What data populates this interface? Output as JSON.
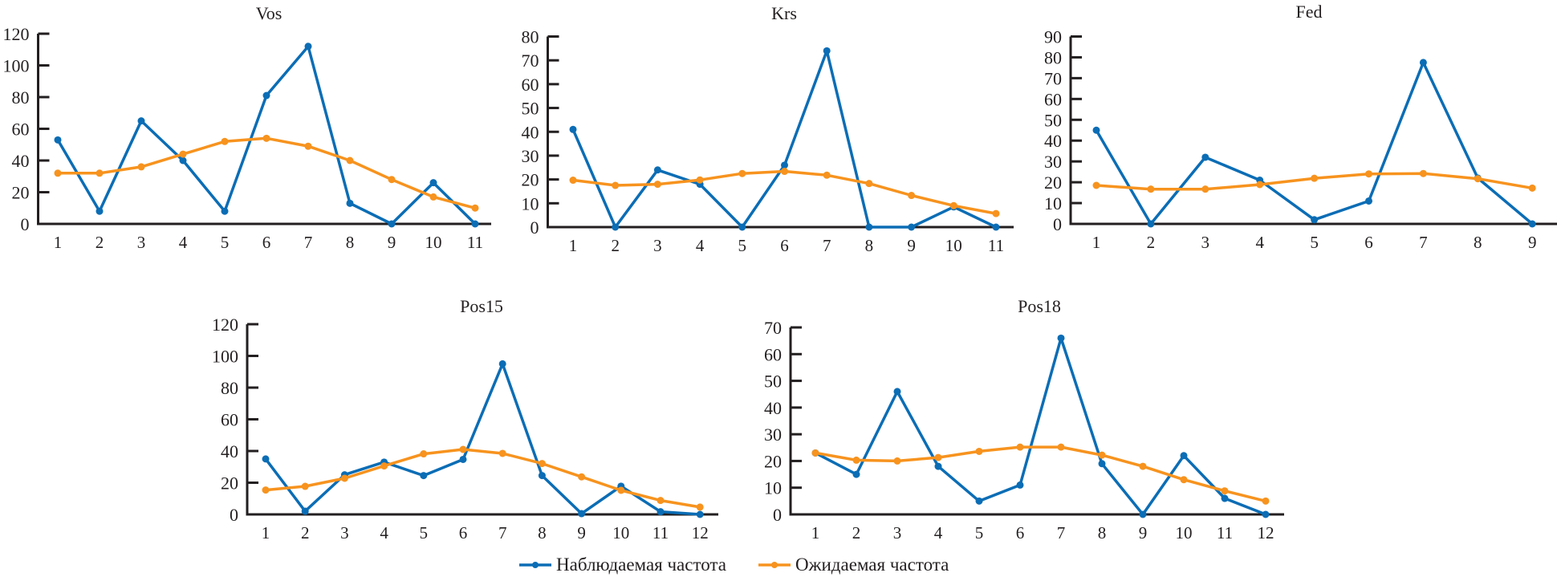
{
  "colors": {
    "observed": "#0b6db5",
    "expected": "#f7931e",
    "axis": "#231f20",
    "text": "#231f20"
  },
  "legend": {
    "position": "bottom-center",
    "items": [
      {
        "name": "Наблюдаемая частота",
        "series": "observed"
      },
      {
        "name": "Ожидаемая частота",
        "series": "expected"
      }
    ]
  },
  "chart_data": [
    {
      "type": "line",
      "title": "Vos",
      "xlabel": "",
      "ylabel": "",
      "x": [
        1,
        2,
        3,
        4,
        5,
        6,
        7,
        8,
        9,
        10,
        11
      ],
      "ylim": [
        0,
        120
      ],
      "yticks": [
        0,
        20,
        40,
        60,
        80,
        100,
        120
      ],
      "grid": false,
      "series": [
        {
          "name": "Наблюдаемая частота",
          "values": [
            53,
            8,
            65,
            40,
            8,
            81,
            112,
            13,
            0,
            26,
            0
          ]
        },
        {
          "name": "Ожидаемая частота",
          "values": [
            32,
            32,
            36,
            44,
            52,
            54,
            49,
            40,
            28,
            17,
            10
          ]
        }
      ]
    },
    {
      "type": "line",
      "title": "Krs",
      "xlabel": "",
      "ylabel": "",
      "x": [
        1,
        2,
        3,
        4,
        5,
        6,
        7,
        8,
        9,
        10,
        11
      ],
      "ylim": [
        0,
        80
      ],
      "yticks": [
        0,
        10,
        20,
        30,
        40,
        50,
        60,
        70,
        80
      ],
      "grid": false,
      "series": [
        {
          "name": "Наблюдаемая частота",
          "values": [
            41,
            0,
            24,
            18,
            0,
            26,
            74,
            0,
            0,
            8.5,
            0
          ]
        },
        {
          "name": "Ожидаемая частота",
          "values": [
            19.7,
            17.5,
            18,
            19.8,
            22.5,
            23.4,
            21.8,
            18.3,
            13.3,
            9,
            5.7
          ]
        }
      ]
    },
    {
      "type": "line",
      "title": "Fed",
      "xlabel": "",
      "ylabel": "",
      "x": [
        1,
        2,
        3,
        4,
        5,
        6,
        7,
        8,
        9
      ],
      "ylim": [
        0,
        90
      ],
      "yticks": [
        0,
        10,
        20,
        30,
        40,
        50,
        60,
        70,
        80,
        90
      ],
      "grid": false,
      "series": [
        {
          "name": "Наблюдаемая частота",
          "values": [
            45,
            0,
            32,
            21,
            2,
            11,
            77.5,
            22,
            0
          ]
        },
        {
          "name": "Ожидаемая частота",
          "values": [
            18.5,
            16.7,
            16.7,
            18.9,
            21.9,
            24,
            24.2,
            21.7,
            17.2
          ]
        }
      ]
    },
    {
      "type": "line",
      "title": "Pos15",
      "xlabel": "",
      "ylabel": "",
      "x": [
        1,
        2,
        3,
        4,
        5,
        6,
        7,
        8,
        9,
        10,
        11,
        12
      ],
      "ylim": [
        0,
        120
      ],
      "yticks": [
        0,
        20,
        40,
        60,
        80,
        100,
        120
      ],
      "grid": false,
      "series": [
        {
          "name": "Наблюдаемая частота",
          "values": [
            35,
            2,
            25,
            33,
            24.5,
            34.7,
            95,
            24.5,
            0.5,
            17.8,
            1.7,
            0
          ]
        },
        {
          "name": "Ожидаемая частота",
          "values": [
            15.4,
            17.7,
            22.8,
            30.6,
            38.2,
            41,
            38.5,
            32.1,
            23.7,
            15.2,
            8.8,
            4.6
          ]
        }
      ]
    },
    {
      "type": "line",
      "title": "Pos18",
      "xlabel": "",
      "ylabel": "",
      "x": [
        1,
        2,
        3,
        4,
        5,
        6,
        7,
        8,
        9,
        10,
        11,
        12
      ],
      "ylim": [
        0,
        70
      ],
      "yticks": [
        0,
        10,
        20,
        30,
        40,
        50,
        60,
        70
      ],
      "grid": false,
      "series": [
        {
          "name": "Наблюдаемая частота",
          "values": [
            23,
            15,
            46,
            18,
            5,
            11,
            66,
            19,
            0,
            22,
            6,
            0
          ]
        },
        {
          "name": "Ожидаемая частота",
          "values": [
            23,
            20.3,
            20,
            21.3,
            23.6,
            25.2,
            25.2,
            22.2,
            18,
            13,
            8.8,
            5
          ]
        }
      ]
    }
  ]
}
